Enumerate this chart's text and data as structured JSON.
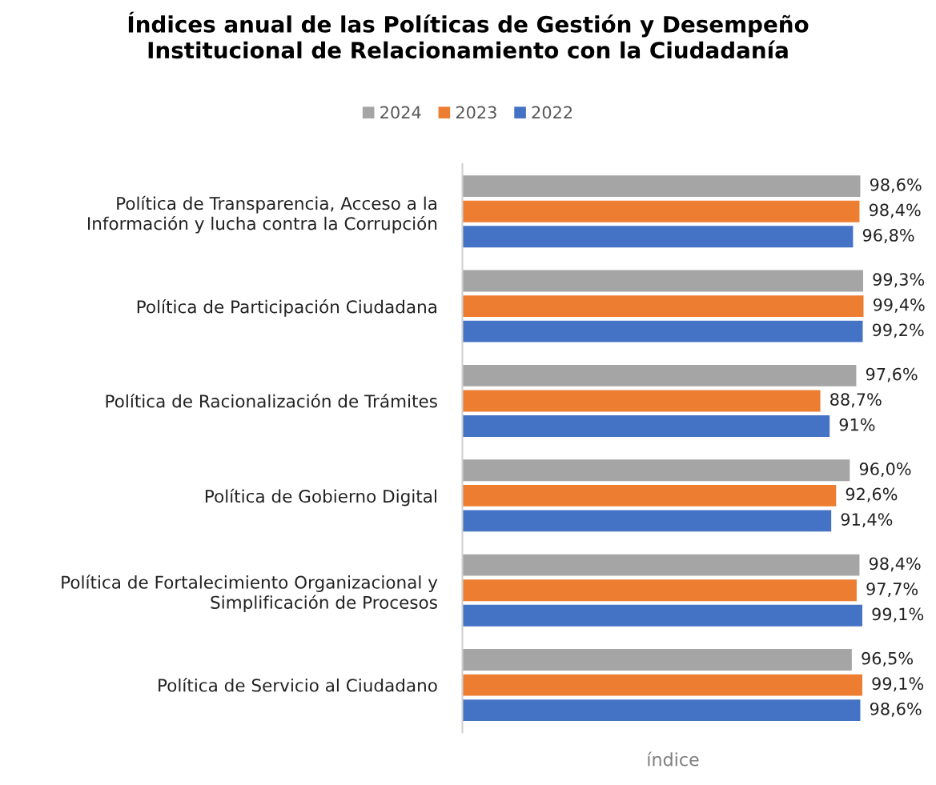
{
  "chart_data": {
    "type": "bar",
    "orientation": "horizontal",
    "title": "Índices anual de las Políticas de Gestión y Desempeño\nInstitucional de Relacionamiento con la Ciudadanía",
    "xlabel": "índice",
    "categories": [
      "Política de Transparencia, Acceso a la\nInformación y lucha contra la Corrupción",
      "Política de Participación Ciudadana",
      "Política de Racionalización de Trámites",
      "Política de Gobierno Digital",
      "Política de Fortalecimiento Organizacional y\nSimplificación de Procesos",
      "Política de Servicio al Ciudadano"
    ],
    "series": [
      {
        "name": "2024",
        "color": "#a5a5a5",
        "values": [
          98.6,
          99.3,
          97.6,
          96.0,
          98.4,
          96.5
        ],
        "value_labels": [
          "98,6%",
          "99,3%",
          "97,6%",
          "96,0%",
          "98,4%",
          "96,5%"
        ]
      },
      {
        "name": "2023",
        "color": "#ed7d31",
        "values": [
          98.4,
          99.4,
          88.7,
          92.6,
          97.7,
          99.1
        ],
        "value_labels": [
          "98,4%",
          "99,4%",
          "88,7%",
          "92,6%",
          "97,7%",
          "99,1%"
        ]
      },
      {
        "name": "2022",
        "color": "#4472c4",
        "values": [
          96.8,
          99.2,
          91,
          91.4,
          99.1,
          98.6
        ],
        "value_labels": [
          "96,8%",
          "99,2%",
          "91%",
          "91,4%",
          "99,1%",
          "98,6%"
        ]
      }
    ],
    "tick_labels": "y",
    "grid": false,
    "legend": "top"
  }
}
